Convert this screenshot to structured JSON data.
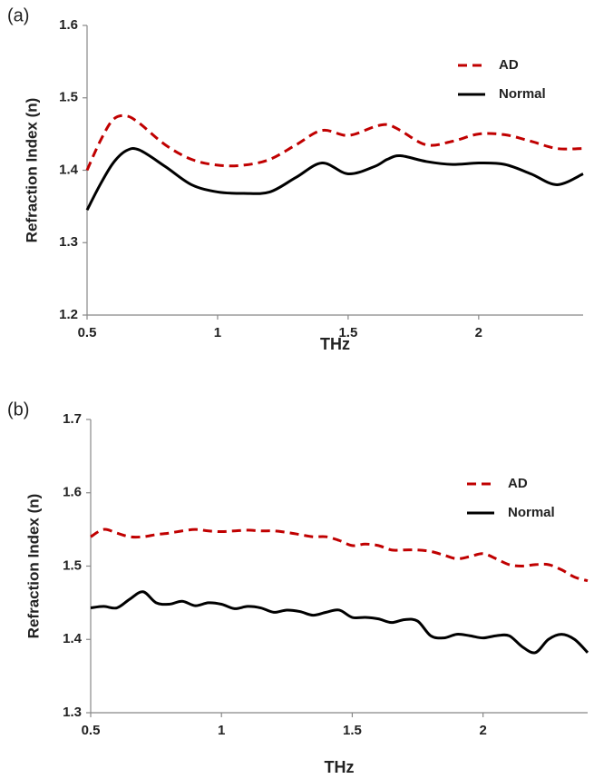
{
  "chart_data": [
    {
      "type": "line",
      "label": "(a)",
      "xlabel": "THz",
      "ylabel": "Refraction Index (n)",
      "x": [
        0.5,
        0.55,
        0.6,
        0.65,
        0.7,
        0.8,
        0.9,
        1.0,
        1.1,
        1.2,
        1.3,
        1.4,
        1.5,
        1.6,
        1.65,
        1.7,
        1.8,
        1.9,
        2.0,
        2.1,
        2.2,
        2.3,
        2.4
      ],
      "series": [
        {
          "name": "AD",
          "color": "#c00000",
          "linestyle": "dashed",
          "values": [
            1.4,
            1.44,
            1.47,
            1.475,
            1.465,
            1.435,
            1.415,
            1.407,
            1.407,
            1.415,
            1.435,
            1.455,
            1.448,
            1.46,
            1.463,
            1.455,
            1.435,
            1.44,
            1.45,
            1.449,
            1.44,
            1.43,
            1.43
          ]
        },
        {
          "name": "Normal",
          "color": "#000000",
          "linestyle": "solid",
          "values": [
            1.345,
            1.38,
            1.41,
            1.427,
            1.428,
            1.405,
            1.38,
            1.37,
            1.368,
            1.37,
            1.39,
            1.41,
            1.395,
            1.405,
            1.415,
            1.42,
            1.412,
            1.408,
            1.41,
            1.408,
            1.395,
            1.38,
            1.395
          ]
        }
      ],
      "xlim": [
        0.5,
        2.4
      ],
      "xticks": [
        0.5,
        1,
        1.5,
        2
      ],
      "ylim": [
        1.2,
        1.6
      ],
      "yticks": [
        1.2,
        1.3,
        1.4,
        1.5,
        1.6
      ],
      "grid": false,
      "legend": "upper right"
    },
    {
      "type": "line",
      "label": "(b)",
      "xlabel": "THz",
      "ylabel": "Refraction Index (n)",
      "x": [
        0.5,
        0.55,
        0.6,
        0.65,
        0.7,
        0.75,
        0.8,
        0.85,
        0.9,
        0.95,
        1.0,
        1.05,
        1.1,
        1.15,
        1.2,
        1.25,
        1.3,
        1.35,
        1.4,
        1.45,
        1.5,
        1.55,
        1.6,
        1.65,
        1.7,
        1.75,
        1.8,
        1.85,
        1.9,
        1.95,
        2.0,
        2.05,
        2.1,
        2.15,
        2.2,
        2.25,
        2.3,
        2.35,
        2.4
      ],
      "series": [
        {
          "name": "AD",
          "color": "#c00000",
          "linestyle": "dashed",
          "values": [
            1.54,
            1.55,
            1.545,
            1.54,
            1.54,
            1.543,
            1.545,
            1.548,
            1.55,
            1.548,
            1.547,
            1.548,
            1.549,
            1.548,
            1.548,
            1.546,
            1.543,
            1.54,
            1.54,
            1.535,
            1.528,
            1.53,
            1.528,
            1.522,
            1.522,
            1.522,
            1.52,
            1.515,
            1.51,
            1.513,
            1.517,
            1.51,
            1.502,
            1.5,
            1.502,
            1.502,
            1.495,
            1.485,
            1.48
          ]
        },
        {
          "name": "Normal",
          "color": "#000000",
          "linestyle": "solid",
          "values": [
            1.443,
            1.445,
            1.443,
            1.455,
            1.465,
            1.45,
            1.448,
            1.452,
            1.446,
            1.45,
            1.448,
            1.442,
            1.445,
            1.443,
            1.437,
            1.44,
            1.438,
            1.433,
            1.437,
            1.44,
            1.43,
            1.43,
            1.428,
            1.423,
            1.427,
            1.425,
            1.405,
            1.402,
            1.407,
            1.405,
            1.402,
            1.405,
            1.405,
            1.39,
            1.382,
            1.4,
            1.407,
            1.4,
            1.382
          ]
        }
      ],
      "xlim": [
        0.5,
        2.4
      ],
      "xticks": [
        0.5,
        1,
        1.5,
        2
      ],
      "ylim": [
        1.3,
        1.7
      ],
      "yticks": [
        1.3,
        1.4,
        1.5,
        1.6,
        1.7
      ],
      "grid": false,
      "legend": "upper right"
    }
  ]
}
